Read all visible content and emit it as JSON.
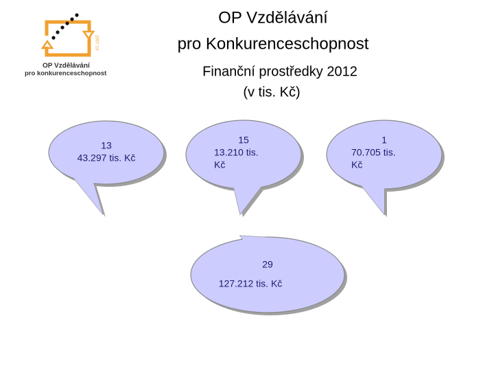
{
  "logo": {
    "title": "OP Vzdělávání",
    "subtitle": "pro konkurenceschopnost",
    "years": "2007-13"
  },
  "header": {
    "title_lines": [
      "OP Vzdělávání",
      "pro Konkurenceschopnost"
    ],
    "subtitle_lines": [
      "Finanční prostředky 2012",
      "(v tis. Kč)"
    ]
  },
  "bubbles": [
    {
      "lines": [
        "13",
        "43.297 tis. Kč"
      ]
    },
    {
      "lines": [
        "15",
        "13.210 tis.",
        "Kč"
      ]
    },
    {
      "lines": [
        "1",
        "70.705 tis.",
        "Kč"
      ]
    },
    {
      "lines": [
        "29",
        "127.212 tis. Kč"
      ]
    }
  ]
}
